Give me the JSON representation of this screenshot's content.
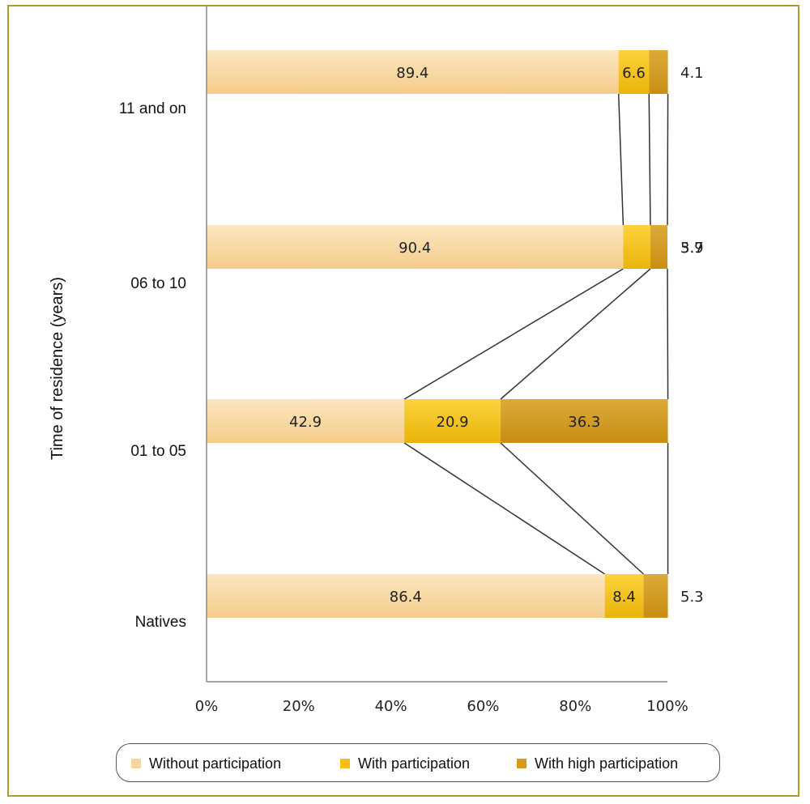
{
  "chart_data": {
    "type": "bar",
    "orientation": "horizontal",
    "stacked": "100%",
    "ylabel": "Time of residence (years)",
    "categories": [
      "11 and on",
      "06 to 10",
      "01 to 05",
      "Natives"
    ],
    "series": [
      {
        "name": "Without participation",
        "color": "#f8d59c",
        "values": [
          89.4,
          90.4,
          42.9,
          86.4
        ]
      },
      {
        "name": "With participation",
        "color": "#f6be17",
        "values": [
          6.6,
          5.9,
          20.9,
          8.4
        ]
      },
      {
        "name": "With high participation",
        "color": "#d49a1c",
        "values": [
          4.1,
          3.7,
          36.3,
          5.3
        ]
      }
    ],
    "xticks": [
      "0%",
      "20%",
      "40%",
      "60%",
      "80%",
      "100%"
    ],
    "xlim": [
      0,
      100
    ],
    "series_lines": true,
    "legend_position": "bottom"
  }
}
